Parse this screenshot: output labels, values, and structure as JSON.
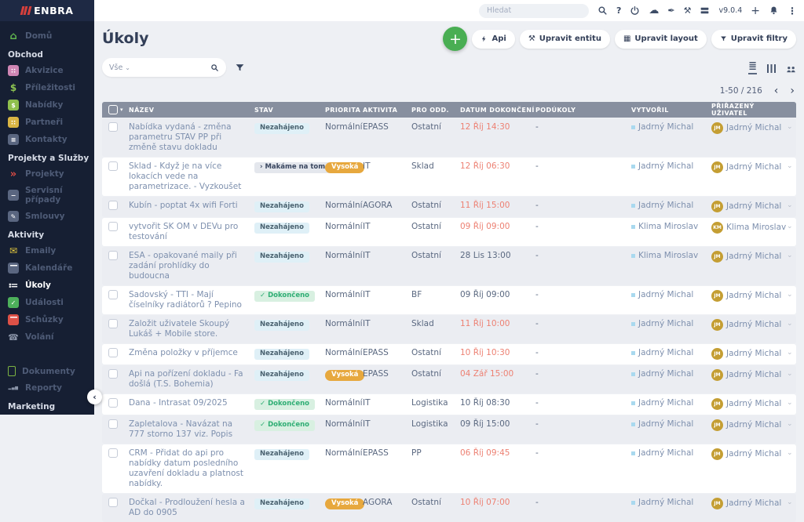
{
  "brand": {
    "name": "ENBRA"
  },
  "topbar": {
    "search_placeholder": "Hledat",
    "version": "v9.0.4"
  },
  "sidebar": {
    "items": [
      {
        "type": "item",
        "label": "Domů",
        "icon": "home-icon"
      },
      {
        "type": "section",
        "label": "Obchod"
      },
      {
        "type": "item",
        "label": "Akvizice",
        "icon": "acquisitions-icon"
      },
      {
        "type": "item",
        "label": "Příležitosti",
        "icon": "opportunities-icon"
      },
      {
        "type": "item",
        "label": "Nabídky",
        "icon": "offers-icon"
      },
      {
        "type": "item",
        "label": "Partneři",
        "icon": "partners-icon"
      },
      {
        "type": "item",
        "label": "Kontakty",
        "icon": "contacts-icon"
      },
      {
        "type": "section",
        "label": "Projekty a Služby"
      },
      {
        "type": "item",
        "label": "Projekty",
        "icon": "projects-icon"
      },
      {
        "type": "item",
        "label": "Servisní případy",
        "icon": "service-cases-icon"
      },
      {
        "type": "item",
        "label": "Smlouvy",
        "icon": "contracts-icon"
      },
      {
        "type": "section",
        "label": "Aktivity"
      },
      {
        "type": "item",
        "label": "Emaily",
        "icon": "emails-icon"
      },
      {
        "type": "item",
        "label": "Kalendáře",
        "icon": "calendars-icon"
      },
      {
        "type": "item",
        "label": "Úkoly",
        "icon": "tasks-icon",
        "active": true
      },
      {
        "type": "item",
        "label": "Události",
        "icon": "events-icon"
      },
      {
        "type": "item",
        "label": "Schůzky",
        "icon": "meetings-icon"
      },
      {
        "type": "item",
        "label": "Volání",
        "icon": "calls-icon"
      },
      {
        "type": "gap"
      },
      {
        "type": "item",
        "label": "Dokumenty",
        "icon": "documents-icon"
      },
      {
        "type": "item",
        "label": "Reporty",
        "icon": "reports-icon"
      },
      {
        "type": "section",
        "label": "Marketing"
      }
    ]
  },
  "page": {
    "title": "Úkoly",
    "actions": [
      {
        "label": "Api",
        "icon": "api-icon"
      },
      {
        "label": "Upravit entitu",
        "icon": "edit-entity-icon"
      },
      {
        "label": "Upravit layout",
        "icon": "edit-layout-icon"
      },
      {
        "label": "Upravit filtry",
        "icon": "edit-filters-icon"
      }
    ],
    "search_scope": "Vše",
    "pagination": "1-50 / 216"
  },
  "table": {
    "columns": [
      "NÁZEV",
      "STAV",
      "PRIORITA",
      "AKTIVITA",
      "PRO ODD.",
      "DATUM DOKONČENÍ",
      "PODÚKOLY",
      "VYTVOŘIL",
      "PŘIŘAZENÝ UŽIVATEL"
    ],
    "status_icons": {
      "done": "✓",
      "in-progress": "›"
    },
    "rows": [
      {
        "name": "Nabídka vydaná - změna parametru STAV PP při změně stavu dokladu",
        "status": "Nezahájeno",
        "status_type": "not-started",
        "priority": "Normální",
        "priority_high": false,
        "activity": "EPASS",
        "department": "Ostatní",
        "due": "12 Říj 14:30",
        "overdue": true,
        "subtasks": "-",
        "created_by": "Jadrný Michal",
        "assignee": "Jadrný Michal",
        "assignee_initials": "JM"
      },
      {
        "name": "Sklad - Když je na více lokacích vede na parametrizace. - Vyzkoušet",
        "status": "Makáme na tom",
        "status_type": "in-progress",
        "priority": "Vysoká",
        "priority_high": true,
        "activity": "IT",
        "department": "Sklad",
        "due": "12 Říj 06:30",
        "overdue": true,
        "subtasks": "-",
        "created_by": "Jadrný Michal",
        "assignee": "Jadrný Michal",
        "assignee_initials": "JM"
      },
      {
        "name": "Kubín - poptat 4x wifi Forti",
        "status": "Nezahájeno",
        "status_type": "not-started",
        "priority": "Normální",
        "priority_high": false,
        "activity": "AGORA",
        "department": "Ostatní",
        "due": "11 Říj 15:00",
        "overdue": true,
        "subtasks": "-",
        "created_by": "Jadrný Michal",
        "assignee": "Jadrný Michal",
        "assignee_initials": "JM"
      },
      {
        "name": "vytvořit SK OM v DEVu pro testování",
        "status": "Nezahájeno",
        "status_type": "not-started",
        "priority": "Normální",
        "priority_high": false,
        "activity": "IT",
        "department": "Ostatní",
        "due": "09 Říj 09:00",
        "overdue": true,
        "subtasks": "-",
        "created_by": "Klima Miroslav",
        "assignee": "Klima Miroslav",
        "assignee_initials": "KM"
      },
      {
        "name": "ESA - opakované maily při zadání prohlídky do budoucna",
        "status": "Nezahájeno",
        "status_type": "not-started",
        "priority": "Normální",
        "priority_high": false,
        "activity": "IT",
        "department": "Ostatní",
        "due": "28 Lis 13:00",
        "overdue": false,
        "subtasks": "-",
        "created_by": "Klima Miroslav",
        "assignee": "Jadrný Michal",
        "assignee_initials": "JM"
      },
      {
        "name": "Sadovský - TTI - Mají číselníky radiátorů ? Pepino",
        "status": "Dokončeno",
        "status_type": "done",
        "priority": "Normální",
        "priority_high": false,
        "activity": "IT",
        "department": "BF",
        "due": "09 Říj 09:00",
        "overdue": false,
        "subtasks": "-",
        "created_by": "Jadrný Michal",
        "assignee": "Jadrný Michal",
        "assignee_initials": "JM"
      },
      {
        "name": "Založit uživatele Skoupý Lukáš + Mobile store.",
        "status": "Nezahájeno",
        "status_type": "not-started",
        "priority": "Normální",
        "priority_high": false,
        "activity": "IT",
        "department": "Sklad",
        "due": "11 Říj 10:00",
        "overdue": true,
        "subtasks": "-",
        "created_by": "Jadrný Michal",
        "assignee": "Jadrný Michal",
        "assignee_initials": "JM"
      },
      {
        "name": "Změna položky v příjemce",
        "status": "Nezahájeno",
        "status_type": "not-started",
        "priority": "Normální",
        "priority_high": false,
        "activity": "EPASS",
        "department": "Ostatní",
        "due": "10 Říj 10:30",
        "overdue": true,
        "subtasks": "-",
        "created_by": "Jadrný Michal",
        "assignee": "Jadrný Michal",
        "assignee_initials": "JM"
      },
      {
        "name": "Api na pořízení dokladu - Fa došlá (T.S. Bohemia)",
        "status": "Nezahájeno",
        "status_type": "not-started",
        "priority": "Vysoká",
        "priority_high": true,
        "activity": "EPASS",
        "department": "Ostatní",
        "due": "04 Zář 15:00",
        "overdue": true,
        "subtasks": "-",
        "created_by": "Jadrný Michal",
        "assignee": "Jadrný Michal",
        "assignee_initials": "JM"
      },
      {
        "name": "Dana - Intrasat 09/2025",
        "status": "Dokončeno",
        "status_type": "done",
        "priority": "Normální",
        "priority_high": false,
        "activity": "IT",
        "department": "Logistika",
        "due": "10 Říj 08:30",
        "overdue": false,
        "subtasks": "-",
        "created_by": "Jadrný Michal",
        "assignee": "Jadrný Michal",
        "assignee_initials": "JM"
      },
      {
        "name": "Zapletalova - Navázat na 777 storno 137 viz. Popis",
        "status": "Dokončeno",
        "status_type": "done",
        "priority": "Normální",
        "priority_high": false,
        "activity": "IT",
        "department": "Logistika",
        "due": "09 Říj 15:00",
        "overdue": false,
        "subtasks": "-",
        "created_by": "Jadrný Michal",
        "assignee": "Jadrný Michal",
        "assignee_initials": "JM"
      },
      {
        "name": "CRM - Přidat do api pro nabídky datum posledního uzavření dokladu a platnost nabídky.",
        "status": "Nezahájeno",
        "status_type": "not-started",
        "priority": "Normální",
        "priority_high": false,
        "activity": "EPASS",
        "department": "PP",
        "due": "06 Říj 09:45",
        "overdue": true,
        "subtasks": "-",
        "created_by": "Jadrný Michal",
        "assignee": "Jadrný Michal",
        "assignee_initials": "JM"
      },
      {
        "name": "Dočkal - Prodloužení hesla a AD do 0905",
        "status": "Nezahájeno",
        "status_type": "not-started",
        "priority": "Vysoká",
        "priority_high": true,
        "activity": "AGORA",
        "department": "Ostatní",
        "due": "10 Říj 07:00",
        "overdue": true,
        "subtasks": "-",
        "created_by": "Jadrný Michal",
        "assignee": "Jadrný Michal",
        "assignee_initials": "JM"
      }
    ]
  },
  "colors": {
    "accent_green": "#49ae53",
    "sidebar_bg": "#161f33",
    "table_header_bg": "#878f9f",
    "status_not_started_bg": "#dff0f7",
    "status_in_progress_bg": "#e4e7ed",
    "status_done_bg": "#d8f0e1",
    "priority_high_bg": "#e7a83e",
    "overdue_text": "#ed8173",
    "avatar_bg": "#c49e33",
    "logo_red": "#d8403c"
  }
}
